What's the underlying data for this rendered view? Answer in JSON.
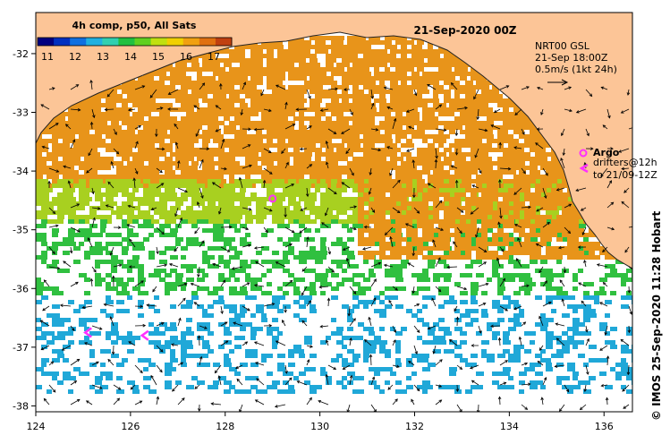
{
  "title_text": "21-Sep-2020 00Z",
  "colorbar": {
    "title": "4h comp, p50, All Sats",
    "labels": [
      "11",
      "12",
      "13",
      "14",
      "15",
      "16",
      "17"
    ],
    "colors": [
      "#000080",
      "#0030c0",
      "#1070e0",
      "#20b0e0",
      "#30d0b0",
      "#20c040",
      "#60d020",
      "#c0e010",
      "#f0d000",
      "#f0a010",
      "#e07010",
      "#c04010"
    ]
  },
  "current_info": [
    "NRT00 GSL",
    "21-Sep 18:00Z",
    "0.5m/s (1kt 24h)"
  ],
  "legend": {
    "argo_label": "Argo",
    "drifters_label": "drifters@12h",
    "drifters_label2": "to 21/09-12Z"
  },
  "credit": "© IMOS 25-Sep-2020 11:28 Hobart",
  "axes": {
    "x_ticks": [
      "124",
      "126",
      "128",
      "130",
      "132",
      "134",
      "136"
    ],
    "y_ticks": [
      "-32",
      "-33",
      "-34",
      "-35",
      "-36",
      "-37",
      "-38"
    ],
    "xlim": [
      124,
      136.6
    ],
    "ylim": [
      -38.1,
      -31.3
    ]
  },
  "colors": {
    "land": "#fcc597",
    "sea_warm": "#e8941a",
    "sea_mid": "#a8d020",
    "sea_cool": "#30c040",
    "sea_cold": "#20a8d8",
    "argo": "#ff30ff"
  },
  "markers": {
    "argo_floats": [
      {
        "lon": 129.0,
        "lat": -34.47
      }
    ],
    "drifters": [
      {
        "lon": 125.1,
        "lat": -36.75
      },
      {
        "lon": 126.3,
        "lat": -36.8
      }
    ]
  }
}
